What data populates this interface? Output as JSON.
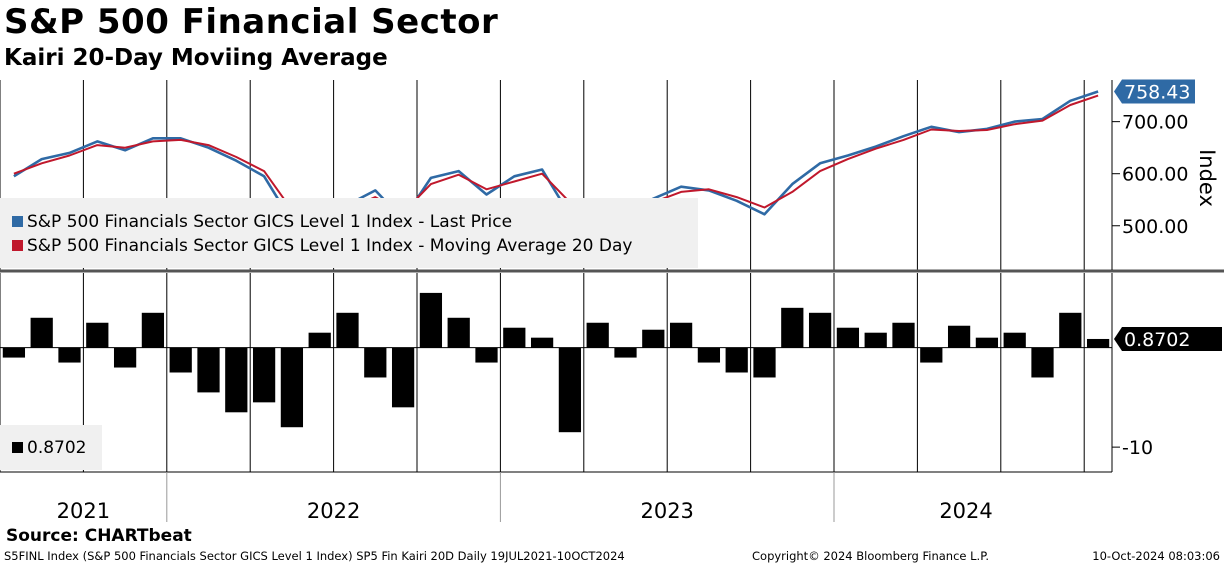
{
  "title": "S&P 500 Financial Sector",
  "subtitle": "Kairi 20-Day Moviing Average",
  "source": "Source: CHARTbeat",
  "footer": {
    "left": "S5FINL Index (S&P 500 Financials Sector GICS Level 1 Index) SP5 Fin Kairi 20D  Daily 19JUL2021-10OCT2024",
    "center": "Copyright© 2024 Bloomberg Finance L.P.",
    "right": "10-Oct-2024 08:03:06"
  },
  "colors": {
    "price": "#2f6aa5",
    "ma": "#c0182c",
    "kairi": "#000000",
    "divider": "#555555"
  },
  "chart_data": [
    {
      "type": "line",
      "ylabel": "Index",
      "ylim": [
        415,
        780
      ],
      "yticks": [
        "700.00",
        "600.00",
        "500.00"
      ],
      "ytick_values": [
        700,
        600,
        500
      ],
      "last_value_label": "758.43",
      "grid": "vertical at quarter boundaries",
      "legend": "bottom-left",
      "series": [
        {
          "name": "S&P 500 Financials Sector GICS Level 1 Index - Last Price",
          "color": "#2f6aa5",
          "x": [
            "2021-07",
            "2021-08",
            "2021-09",
            "2021-10",
            "2021-11",
            "2021-12",
            "2022-01",
            "2022-02",
            "2022-03",
            "2022-04",
            "2022-05",
            "2022-06",
            "2022-07",
            "2022-08",
            "2022-09",
            "2022-10",
            "2022-11",
            "2022-12",
            "2023-01",
            "2023-02",
            "2023-03",
            "2023-04",
            "2023-05",
            "2023-06",
            "2023-07",
            "2023-08",
            "2023-09",
            "2023-10",
            "2023-11",
            "2023-12",
            "2024-01",
            "2024-02",
            "2024-03",
            "2024-04",
            "2024-05",
            "2024-06",
            "2024-07",
            "2024-08",
            "2024-09",
            "2024-10"
          ],
          "values": [
            595,
            628,
            640,
            662,
            645,
            668,
            668,
            650,
            625,
            595,
            508,
            520,
            540,
            568,
            512,
            592,
            605,
            560,
            595,
            608,
            520,
            540,
            525,
            552,
            575,
            568,
            548,
            522,
            580,
            620,
            635,
            652,
            672,
            690,
            680,
            686,
            700,
            705,
            740,
            758
          ]
        },
        {
          "name": "S&P 500 Financials Sector GICS Level 1 Index - Moving Average 20 Day",
          "color": "#c0182c",
          "x": [
            "2021-07",
            "2021-08",
            "2021-09",
            "2021-10",
            "2021-11",
            "2021-12",
            "2022-01",
            "2022-02",
            "2022-03",
            "2022-04",
            "2022-05",
            "2022-06",
            "2022-07",
            "2022-08",
            "2022-09",
            "2022-10",
            "2022-11",
            "2022-12",
            "2023-01",
            "2023-02",
            "2023-03",
            "2023-04",
            "2023-05",
            "2023-06",
            "2023-07",
            "2023-08",
            "2023-09",
            "2023-10",
            "2023-11",
            "2023-12",
            "2024-01",
            "2024-02",
            "2024-03",
            "2024-04",
            "2024-05",
            "2024-06",
            "2024-07",
            "2024-08",
            "2024-09",
            "2024-10"
          ],
          "values": [
            600,
            620,
            635,
            655,
            650,
            662,
            665,
            655,
            632,
            605,
            530,
            522,
            532,
            555,
            525,
            580,
            598,
            570,
            585,
            600,
            545,
            535,
            530,
            545,
            565,
            570,
            555,
            535,
            565,
            605,
            628,
            648,
            665,
            685,
            682,
            684,
            695,
            702,
            732,
            750
          ]
        }
      ]
    },
    {
      "type": "bar",
      "ylabel": "",
      "ylim": [
        -12.5,
        7.5
      ],
      "yticks": [
        "-10"
      ],
      "ytick_values": [
        -10
      ],
      "last_value_label": "0.8702",
      "legend": "bottom-left",
      "series": [
        {
          "name": "0.8702",
          "color": "#000000",
          "x": [
            "2021-07",
            "2021-08",
            "2021-09",
            "2021-10",
            "2021-11",
            "2021-12",
            "2022-01",
            "2022-02",
            "2022-03",
            "2022-04",
            "2022-05",
            "2022-06",
            "2022-07",
            "2022-08",
            "2022-09",
            "2022-10",
            "2022-11",
            "2022-12",
            "2023-01",
            "2023-02",
            "2023-03",
            "2023-04",
            "2023-05",
            "2023-06",
            "2023-07",
            "2023-08",
            "2023-09",
            "2023-10",
            "2023-11",
            "2023-12",
            "2024-01",
            "2024-02",
            "2024-03",
            "2024-04",
            "2024-05",
            "2024-06",
            "2024-07",
            "2024-08",
            "2024-09",
            "2024-10"
          ],
          "values": [
            -1.0,
            3.0,
            -1.5,
            2.5,
            -2.0,
            3.5,
            -2.5,
            -4.5,
            -6.5,
            -5.5,
            -8.0,
            1.5,
            3.5,
            -3.0,
            -6.0,
            5.5,
            3.0,
            -1.5,
            2.0,
            1.0,
            -8.5,
            2.5,
            -1.0,
            1.8,
            2.5,
            -1.5,
            -2.5,
            -3.0,
            4.0,
            3.5,
            2.0,
            1.5,
            2.5,
            -1.5,
            2.2,
            1.0,
            1.5,
            -3.0,
            3.5,
            0.87
          ]
        }
      ]
    }
  ],
  "x_axis": {
    "years": [
      "2021",
      "2022",
      "2023",
      "2024"
    ]
  }
}
